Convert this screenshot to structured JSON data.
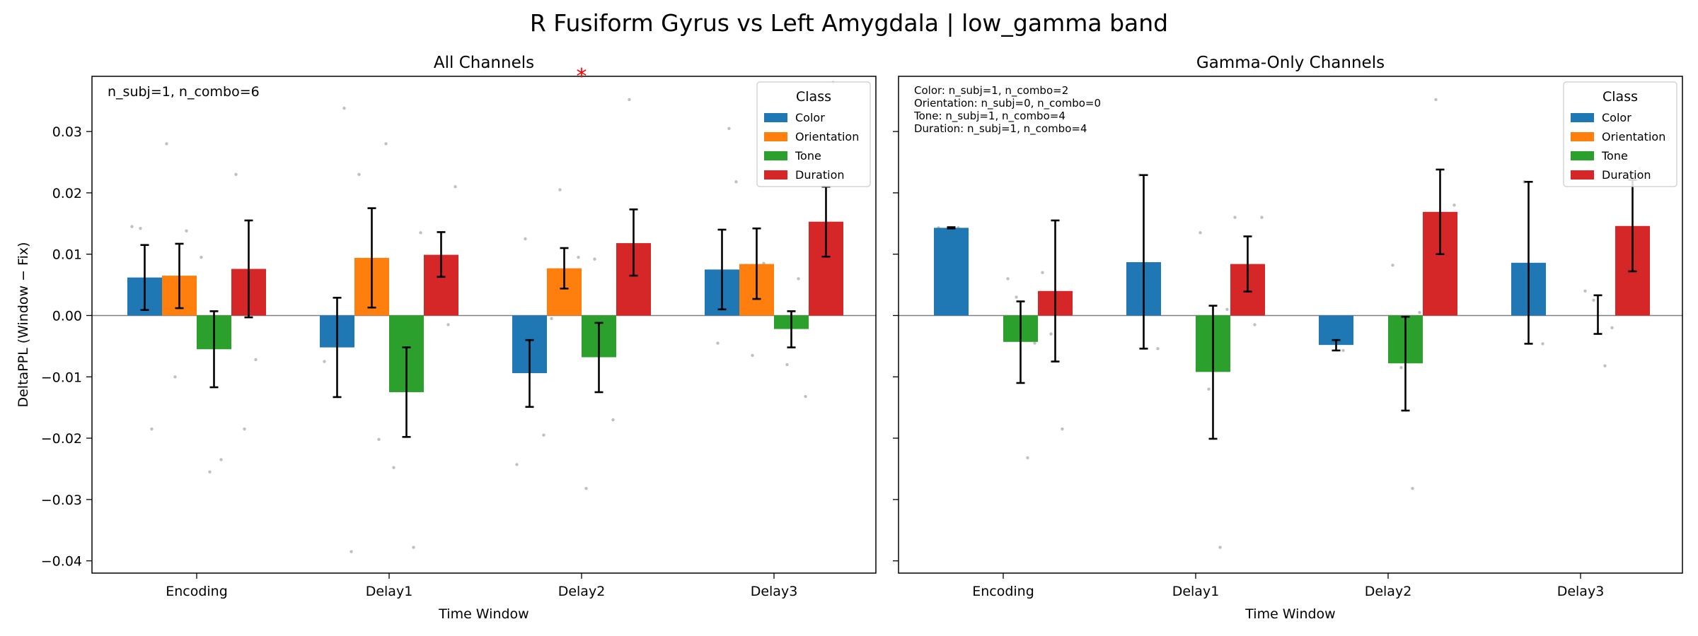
{
  "suptitle": "R Fusiform Gyrus vs Left Amygdala  |  low_gamma band",
  "colors": {
    "Color": "#1f77b4",
    "Orientation": "#ff7f0e",
    "Tone": "#2ca02c",
    "Duration": "#d62728",
    "dots": "#b0b0b0",
    "significance": "#ff0000"
  },
  "chart_data": [
    {
      "type": "bar",
      "title": "All Channels",
      "xlabel": "Time Window",
      "ylabel": "DeltaPPL (Window − Fix)",
      "ylim": [
        -0.042,
        0.039
      ],
      "yticks": [
        0.03,
        0.02,
        0.01,
        0.0,
        -0.01,
        -0.02,
        -0.03,
        -0.04
      ],
      "ytick_labels": [
        "0.03",
        "0.02",
        "0.01",
        "0.00",
        "−0.01",
        "−0.02",
        "−0.03",
        "−0.04"
      ],
      "categories": [
        "Encoding",
        "Delay1",
        "Delay2",
        "Delay3"
      ],
      "legend": {
        "title": "Class",
        "placement": "top-right"
      },
      "annotation": "n_subj=1, n_combo=6",
      "significance_marker": {
        "text": "*",
        "category": "Delay2"
      },
      "series": [
        {
          "name": "Color",
          "values": [
            0.0062,
            -0.0052,
            -0.0094,
            0.0075
          ],
          "err_low": [
            0.0009,
            -0.0133,
            -0.0149,
            0.001
          ],
          "err_high": [
            0.0115,
            0.0029,
            -0.004,
            0.014
          ],
          "points": [
            0.0145,
            -0.0185,
            0.0142,
            -0.0385,
            -0.0075,
            0.0338,
            0.0125,
            -0.0195,
            -0.0243,
            0.0305,
            -0.0045,
            0.0218
          ]
        },
        {
          "name": "Orientation",
          "values": [
            0.0065,
            0.0094,
            0.0077,
            0.0084
          ],
          "err_low": [
            0.0012,
            0.0013,
            0.0044,
            0.0027
          ],
          "err_high": [
            0.0117,
            0.0175,
            0.011,
            0.0142
          ],
          "points": [
            0.028,
            0.0138,
            -0.01,
            0.028,
            0.023,
            -0.0202,
            0.0205,
            0.0095,
            -0.0005,
            0.0085,
            -0.0065,
            0.0252
          ]
        },
        {
          "name": "Tone",
          "values": [
            -0.0055,
            -0.0125,
            -0.0068,
            -0.0022
          ],
          "err_low": [
            -0.0117,
            -0.0198,
            -0.0125,
            -0.0052
          ],
          "err_high": [
            0.0007,
            -0.0052,
            -0.0012,
            0.0007
          ],
          "points": [
            0.0095,
            -0.0235,
            -0.0255,
            0.0135,
            -0.0248,
            -0.0378,
            0.0092,
            -0.017,
            -0.0282,
            0.006,
            -0.008,
            -0.0132
          ]
        },
        {
          "name": "Duration",
          "values": [
            0.0076,
            0.0099,
            0.0118,
            0.0153
          ],
          "err_low": [
            -0.0003,
            0.0063,
            0.0065,
            0.0096
          ],
          "err_high": [
            0.0155,
            0.0136,
            0.0173,
            0.021
          ],
          "points": [
            0.023,
            -0.0072,
            -0.0185,
            0.021,
            0.003,
            -0.0015,
            0.0352,
            0.0025,
            0.0015,
            0.038,
            0.001,
            0.006
          ]
        }
      ]
    },
    {
      "type": "bar",
      "title": "Gamma-Only Channels",
      "xlabel": "Time Window",
      "ylabel": "",
      "ylim": [
        -0.042,
        0.039
      ],
      "categories": [
        "Encoding",
        "Delay1",
        "Delay2",
        "Delay3"
      ],
      "legend": {
        "title": "Class",
        "placement": "top-right"
      },
      "annotation_lines": [
        "Color: n_subj=1, n_combo=2",
        "Orientation: n_subj=0, n_combo=0",
        "Tone: n_subj=1, n_combo=4",
        "Duration: n_subj=1, n_combo=4"
      ],
      "series": [
        {
          "name": "Color",
          "values": [
            0.0143,
            0.0087,
            -0.0048,
            0.0086
          ],
          "err_low": [
            0.0142,
            -0.0054,
            -0.0057,
            -0.0046
          ],
          "err_high": [
            0.0144,
            0.0229,
            -0.004,
            0.0218
          ],
          "points": [
            0.0143,
            0.0143,
            0.0229,
            -0.0054,
            -0.004,
            -0.0057,
            0.0218,
            -0.0046
          ]
        },
        {
          "name": "Orientation",
          "values": [
            null,
            null,
            null,
            null
          ],
          "err_low": [
            null,
            null,
            null,
            null
          ],
          "err_high": [
            null,
            null,
            null,
            null
          ],
          "points": []
        },
        {
          "name": "Tone",
          "values": [
            -0.0043,
            -0.0092,
            -0.0078,
            null
          ],
          "err_low": [
            -0.011,
            -0.0201,
            -0.0155,
            -0.003
          ],
          "err_high": [
            0.0023,
            0.0016,
            -0.0002,
            0.0033
          ],
          "points": [
            0.006,
            -0.0232,
            0.003,
            -0.0045,
            0.0135,
            -0.0378,
            -0.012,
            0.001,
            0.0082,
            -0.0282,
            -0.0085,
            0.0005,
            0.004,
            -0.0082,
            0.0025,
            -0.002
          ]
        },
        {
          "name": "Duration",
          "values": [
            0.004,
            0.0084,
            0.0169,
            0.0146
          ],
          "err_low": [
            -0.0075,
            0.0039,
            0.01,
            0.0072
          ],
          "err_high": [
            0.0155,
            0.0129,
            0.0238,
            0.0221
          ],
          "points": [
            0.007,
            -0.0185,
            -0.003,
            0.016,
            0.016,
            -0.0015,
            0.0352,
            0.018,
            0.0028,
            0.024,
            0.006,
            0.001
          ]
        }
      ]
    }
  ]
}
